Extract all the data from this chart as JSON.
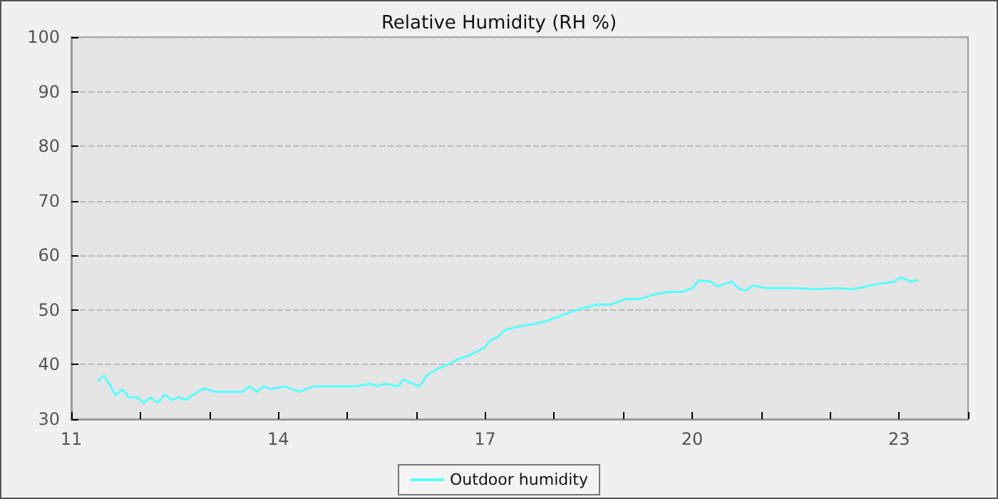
{
  "chart_data": {
    "type": "line",
    "title": "Relative Humidity (RH %)",
    "series": [
      {
        "name": "Outdoor humidity",
        "color": "#55ffff",
        "x": [
          11.39,
          11.47,
          11.55,
          11.64,
          11.74,
          11.84,
          11.95,
          12.05,
          12.15,
          12.25,
          12.36,
          12.46,
          12.56,
          12.66,
          12.77,
          12.93,
          13.07,
          13.48,
          13.59,
          13.69,
          13.79,
          13.89,
          14.1,
          14.3,
          14.51,
          14.72,
          14.93,
          15.13,
          15.33,
          15.44,
          15.54,
          15.74,
          15.81,
          16.05,
          16.15,
          16.32,
          16.46,
          16.61,
          16.77,
          16.98,
          17.08,
          17.18,
          17.28,
          17.49,
          17.69,
          17.9,
          18.11,
          18.31,
          18.62,
          18.82,
          19.03,
          19.23,
          19.44,
          19.65,
          19.85,
          20.0,
          20.1,
          20.27,
          20.37,
          20.57,
          20.67,
          20.77,
          20.88,
          21.08,
          21.49,
          21.8,
          22.11,
          22.31,
          22.41,
          22.62,
          22.93,
          23.02,
          23.17,
          23.27
        ],
        "values": [
          37,
          38,
          36.5,
          34.4,
          35.4,
          34,
          34,
          33,
          34,
          33,
          34.5,
          33.5,
          34,
          33.5,
          34.5,
          35.7,
          35,
          35,
          36,
          35,
          36,
          35.5,
          36,
          35,
          36,
          36,
          36,
          36,
          36.5,
          36,
          36.5,
          36,
          37.3,
          36,
          38,
          39.3,
          40,
          41,
          41.7,
          43,
          44.5,
          45,
          46.3,
          47,
          47.4,
          48,
          49,
          50,
          51,
          51,
          52,
          52,
          52.8,
          53.3,
          53.3,
          54,
          55.4,
          55.2,
          54.3,
          55.2,
          54,
          53.5,
          54.5,
          54,
          54,
          53.8,
          54,
          53.8,
          54,
          54.6,
          55.2,
          56,
          55.2,
          55.4
        ]
      }
    ],
    "xlim": [
      11,
      24
    ],
    "xticks": [
      11,
      {
        "value": 12,
        "label": null
      },
      {
        "value": 13,
        "label": null
      },
      14,
      {
        "value": 15,
        "label": null
      },
      {
        "value": 16,
        "label": null
      },
      17,
      {
        "value": 18,
        "label": null
      },
      {
        "value": 19,
        "label": null
      },
      20,
      {
        "value": 21,
        "label": null
      },
      {
        "value": 22,
        "label": null
      },
      23,
      {
        "value": 24,
        "label": null
      }
    ],
    "ylim": [
      30,
      100
    ],
    "yticks": [
      30,
      40,
      50,
      60,
      70,
      80,
      90,
      100
    ],
    "grid": true,
    "legend": "bottom",
    "marker": "none",
    "line_style": "solid"
  }
}
